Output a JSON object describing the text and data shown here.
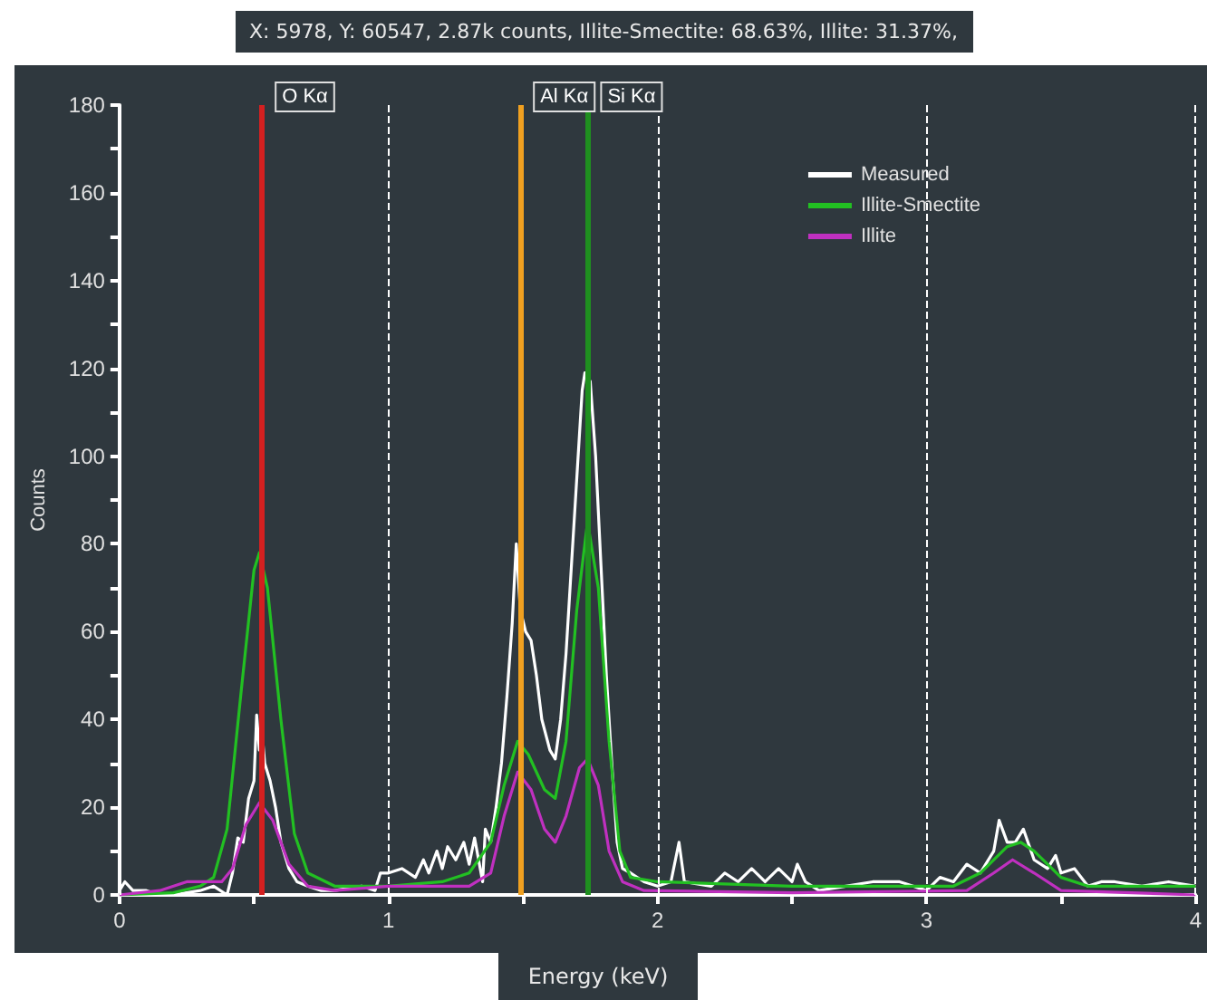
{
  "chart_data": {
    "type": "line",
    "xlabel": "Energy (keV)",
    "ylabel": "Counts",
    "annotations": [
      "X: 5978, Y: 60547,  2.87k counts, Illite-Smectite: 68.63%, Illite: 31.37%,"
    ],
    "xlim": [
      0,
      4
    ],
    "ylim": [
      0,
      180
    ],
    "xticks": [
      0,
      {
        "value": 0.5,
        "label": null
      },
      1,
      {
        "value": 1.5,
        "label": null
      },
      2,
      {
        "value": 2.5,
        "label": null
      },
      3,
      {
        "value": 3.5,
        "label": null
      },
      4
    ],
    "yticks": [
      0,
      {
        "value": 10,
        "label": null
      },
      20,
      {
        "value": 30,
        "label": null
      },
      40,
      {
        "value": 50,
        "label": null
      },
      60,
      {
        "value": 70,
        "label": null
      },
      80,
      {
        "value": 90,
        "label": null
      },
      100,
      {
        "value": 110,
        "label": null
      },
      120,
      {
        "value": 130,
        "label": null
      },
      140,
      {
        "value": 150,
        "label": null
      },
      160,
      {
        "value": 170,
        "label": null
      },
      180
    ],
    "grid": "x",
    "legend": "top right",
    "marker": "none",
    "line_style": "solid",
    "ref_lines": [
      {
        "axis": "x",
        "value": 0.525,
        "label": "O Kα",
        "color": "#d42020"
      },
      {
        "axis": "x",
        "value": 1.487,
        "label": "Al Kα",
        "color": "#f0a020"
      },
      {
        "axis": "x",
        "value": 1.74,
        "label": "Si Kα",
        "color": "#1f8f1f"
      }
    ],
    "series": [
      {
        "name": "Measured",
        "color": "#ffffff",
        "x": [
          0,
          0.02,
          0.05,
          0.1,
          0.15,
          0.2,
          0.3,
          0.35,
          0.4,
          0.42,
          0.44,
          0.46,
          0.48,
          0.5,
          0.51,
          0.52,
          0.53,
          0.54,
          0.56,
          0.58,
          0.6,
          0.63,
          0.66,
          0.7,
          0.75,
          0.8,
          0.9,
          0.95,
          0.97,
          1.0,
          1.05,
          1.1,
          1.13,
          1.15,
          1.18,
          1.2,
          1.22,
          1.25,
          1.28,
          1.3,
          1.32,
          1.35,
          1.36,
          1.38,
          1.4,
          1.42,
          1.44,
          1.46,
          1.475,
          1.49,
          1.51,
          1.53,
          1.55,
          1.57,
          1.6,
          1.62,
          1.64,
          1.66,
          1.68,
          1.7,
          1.72,
          1.73,
          1.75,
          1.77,
          1.79,
          1.81,
          1.83,
          1.85,
          1.87,
          1.9,
          1.95,
          2.0,
          2.05,
          2.08,
          2.1,
          2.2,
          2.25,
          2.3,
          2.35,
          2.4,
          2.45,
          2.5,
          2.52,
          2.55,
          2.6,
          2.7,
          2.8,
          2.9,
          2.95,
          3.0,
          3.05,
          3.1,
          3.15,
          3.2,
          3.25,
          3.27,
          3.3,
          3.33,
          3.36,
          3.4,
          3.45,
          3.48,
          3.5,
          3.55,
          3.6,
          3.65,
          3.7,
          3.8,
          3.9,
          4.0
        ],
        "values": [
          1,
          3,
          1,
          1,
          0,
          0,
          1,
          2,
          0,
          5,
          13,
          12,
          22,
          26,
          41,
          33,
          37,
          30,
          26,
          20,
          12,
          6,
          3,
          2,
          1,
          1,
          2,
          1,
          5,
          5,
          6,
          4,
          8,
          5,
          10,
          6,
          11,
          8,
          12,
          7,
          13,
          3,
          15,
          12,
          20,
          30,
          45,
          62,
          80,
          65,
          60,
          58,
          50,
          40,
          33,
          31,
          40,
          55,
          75,
          95,
          115,
          119,
          117,
          100,
          75,
          50,
          30,
          12,
          6,
          5,
          3,
          2,
          3,
          12,
          3,
          2,
          5,
          3,
          6,
          3,
          6,
          3,
          7,
          3,
          1,
          2,
          3,
          3,
          2,
          1,
          4,
          3,
          7,
          5,
          10,
          17,
          12,
          12,
          15,
          8,
          6,
          9,
          5,
          6,
          2,
          3,
          3,
          2,
          3,
          2
        ]
      },
      {
        "name": "Illite-Smectite",
        "color": "#22c022",
        "x": [
          0,
          0.2,
          0.3,
          0.35,
          0.4,
          0.45,
          0.5,
          0.52,
          0.55,
          0.6,
          0.65,
          0.7,
          0.8,
          1.0,
          1.2,
          1.3,
          1.38,
          1.43,
          1.48,
          1.52,
          1.58,
          1.62,
          1.66,
          1.7,
          1.74,
          1.78,
          1.82,
          1.86,
          1.9,
          2.0,
          2.5,
          3.1,
          3.2,
          3.3,
          3.35,
          3.4,
          3.5,
          3.6,
          4.0
        ],
        "values": [
          0,
          0.5,
          2,
          4,
          15,
          45,
          74,
          78,
          70,
          40,
          14,
          5,
          2,
          2,
          3,
          5,
          12,
          25,
          35,
          32,
          24,
          22,
          35,
          65,
          85,
          70,
          35,
          10,
          4,
          3,
          2,
          2,
          5,
          11,
          12,
          10,
          4,
          2,
          2
        ]
      },
      {
        "name": "Illite",
        "color": "#c030c0",
        "x": [
          0,
          0.15,
          0.25,
          0.38,
          0.42,
          0.47,
          0.52,
          0.57,
          0.63,
          0.7,
          0.8,
          1.0,
          1.3,
          1.38,
          1.43,
          1.48,
          1.53,
          1.58,
          1.62,
          1.66,
          1.71,
          1.74,
          1.78,
          1.82,
          1.87,
          1.95,
          2.5,
          3.15,
          3.25,
          3.32,
          3.4,
          3.5,
          4.0
        ],
        "values": [
          0,
          1,
          3,
          3,
          6,
          16,
          21,
          17,
          7,
          2,
          1,
          2,
          2,
          5,
          18,
          28,
          24,
          15,
          12,
          18,
          29,
          31,
          25,
          10,
          3,
          1,
          0.5,
          1,
          5,
          8,
          5,
          1,
          0
        ]
      }
    ]
  }
}
